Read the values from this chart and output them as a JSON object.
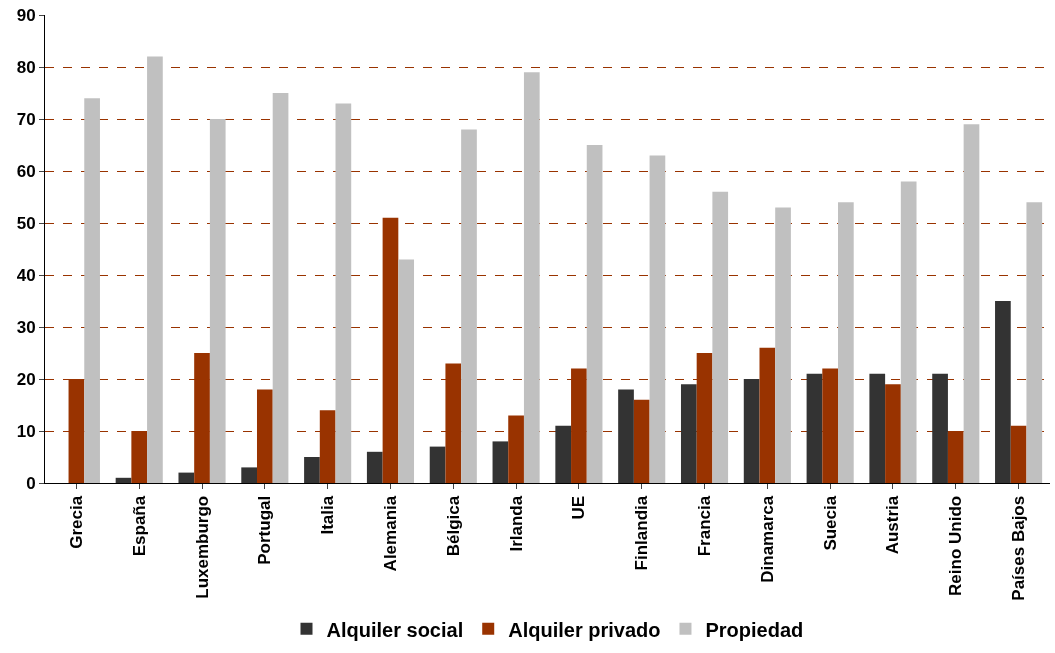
{
  "chart_data": {
    "type": "bar",
    "categories": [
      "Grecia",
      "España",
      "Luxemburgo",
      "Portugal",
      "Italia",
      "Alemania",
      "Bélgica",
      "Irlanda",
      "UE",
      "Finlandia",
      "Francia",
      "Dinamarca",
      "Suecia",
      "Austria",
      "Reino Unido",
      "Países Bajos"
    ],
    "series": [
      {
        "name": "Alquiler social",
        "color": "#333333",
        "values": [
          0,
          1,
          2,
          3,
          5,
          6,
          7,
          8,
          11,
          18,
          19,
          20,
          21,
          21,
          21,
          35
        ]
      },
      {
        "name": "Alquiler privado",
        "color": "#993300",
        "values": [
          20,
          10,
          25,
          18,
          14,
          51,
          23,
          13,
          22,
          16,
          25,
          26,
          22,
          19,
          10,
          11
        ]
      },
      {
        "name": "Propiedad",
        "color": "#c0c0c0",
        "values": [
          74,
          82,
          70,
          75,
          73,
          43,
          68,
          79,
          65,
          63,
          56,
          53,
          54,
          58,
          69,
          54
        ]
      }
    ],
    "ylim": [
      0,
      90
    ],
    "yticks": [
      0,
      10,
      20,
      30,
      40,
      50,
      60,
      70,
      80,
      90
    ],
    "grid": "y",
    "legend": "bottom"
  }
}
